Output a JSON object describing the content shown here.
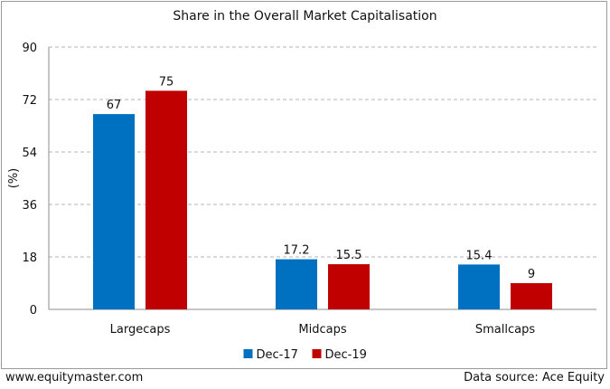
{
  "chart_data": {
    "type": "bar",
    "title": "Share in the Overall Market Capitalisation",
    "ylabel": "(%)",
    "xlabel": "",
    "ylim": [
      0,
      90
    ],
    "yticks": [
      "0",
      "18",
      "36",
      "54",
      "72",
      "90"
    ],
    "categories": [
      "Largecaps",
      "Midcaps",
      "Smallcaps"
    ],
    "series": [
      {
        "name": "Dec-17",
        "color": "#0070c0",
        "values": [
          67,
          17.2,
          15.4
        ],
        "labels": [
          "67",
          "17.2",
          "15.4"
        ]
      },
      {
        "name": "Dec-19",
        "color": "#c00000",
        "values": [
          75,
          15.5,
          9
        ],
        "labels": [
          "75",
          "15.5",
          "9"
        ]
      }
    ],
    "grid": true,
    "legend_position": "bottom"
  },
  "footer": {
    "website": "www.equitymaster.com",
    "source": "Data source: Ace Equity"
  }
}
